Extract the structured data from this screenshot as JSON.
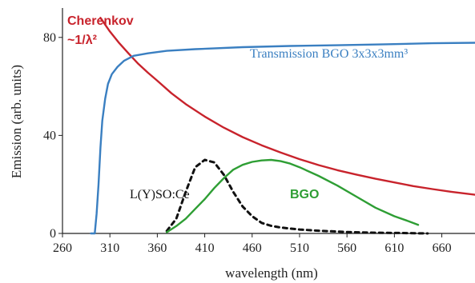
{
  "chart_data": {
    "type": "line",
    "xlabel": "wavelength (nm)",
    "ylabel": "Emission (arb. units)",
    "xlim": [
      260,
      695
    ],
    "ylim": [
      0,
      92
    ],
    "xticks": [
      260,
      310,
      360,
      410,
      460,
      510,
      560,
      610,
      660
    ],
    "yticks": [
      0,
      40,
      80
    ],
    "grid": false,
    "series": [
      {
        "name": "Cherenkov",
        "label_secondary": "~1/λ²",
        "color": "#c8232c",
        "style": "solid",
        "points": [
          [
            300,
            88
          ],
          [
            310,
            82.4
          ],
          [
            320,
            77.6
          ],
          [
            330,
            73.3
          ],
          [
            340,
            69.2
          ],
          [
            350,
            65.6
          ],
          [
            360,
            62.3
          ],
          [
            375,
            57.2
          ],
          [
            390,
            52.8
          ],
          [
            410,
            47.7
          ],
          [
            430,
            43.2
          ],
          [
            450,
            39.3
          ],
          [
            470,
            36.0
          ],
          [
            490,
            33.0
          ],
          [
            510,
            30.3
          ],
          [
            530,
            27.9
          ],
          [
            550,
            25.8
          ],
          [
            570,
            24.0
          ],
          [
            590,
            22.3
          ],
          [
            610,
            20.8
          ],
          [
            630,
            19.3
          ],
          [
            650,
            18.1
          ],
          [
            670,
            17.0
          ],
          [
            695,
            15.8
          ]
        ]
      },
      {
        "name": "Transmission BGO 3x3x3mm³",
        "color": "#3a7fc1",
        "style": "solid",
        "points": [
          [
            290,
            0
          ],
          [
            294,
            0
          ],
          [
            296,
            8
          ],
          [
            298,
            20
          ],
          [
            300,
            35
          ],
          [
            302,
            46
          ],
          [
            305,
            55
          ],
          [
            308,
            61
          ],
          [
            312,
            65
          ],
          [
            318,
            68
          ],
          [
            325,
            70.5
          ],
          [
            335,
            72.5
          ],
          [
            350,
            73.5
          ],
          [
            370,
            74.5
          ],
          [
            400,
            75.2
          ],
          [
            450,
            76
          ],
          [
            500,
            76.5
          ],
          [
            550,
            76.8
          ],
          [
            600,
            77.2
          ],
          [
            650,
            77.6
          ],
          [
            695,
            77.8
          ]
        ]
      },
      {
        "name": "L(Y)SO:Ce",
        "color": "#111111",
        "style": "dashed",
        "points": [
          [
            370,
            1
          ],
          [
            380,
            6
          ],
          [
            390,
            17
          ],
          [
            400,
            27
          ],
          [
            410,
            30
          ],
          [
            420,
            29
          ],
          [
            430,
            24
          ],
          [
            440,
            17
          ],
          [
            450,
            11
          ],
          [
            460,
            7
          ],
          [
            470,
            4.3
          ],
          [
            480,
            3.1
          ],
          [
            490,
            2.4
          ],
          [
            510,
            1.6
          ],
          [
            530,
            1.1
          ],
          [
            560,
            0.6
          ],
          [
            590,
            0.3
          ],
          [
            620,
            0.15
          ],
          [
            645,
            0
          ]
        ]
      },
      {
        "name": "BGO",
        "color": "#2e9e34",
        "style": "solid",
        "points": [
          [
            370,
            0.5
          ],
          [
            380,
            3
          ],
          [
            390,
            6
          ],
          [
            400,
            10
          ],
          [
            410,
            14
          ],
          [
            420,
            18.5
          ],
          [
            430,
            22.5
          ],
          [
            440,
            26
          ],
          [
            450,
            28
          ],
          [
            460,
            29.2
          ],
          [
            470,
            29.8
          ],
          [
            480,
            30
          ],
          [
            490,
            29.5
          ],
          [
            500,
            28.5
          ],
          [
            510,
            27
          ],
          [
            530,
            23.5
          ],
          [
            550,
            19.5
          ],
          [
            570,
            15
          ],
          [
            590,
            10.5
          ],
          [
            610,
            7
          ],
          [
            625,
            5
          ],
          [
            635,
            3.5
          ]
        ]
      }
    ]
  }
}
